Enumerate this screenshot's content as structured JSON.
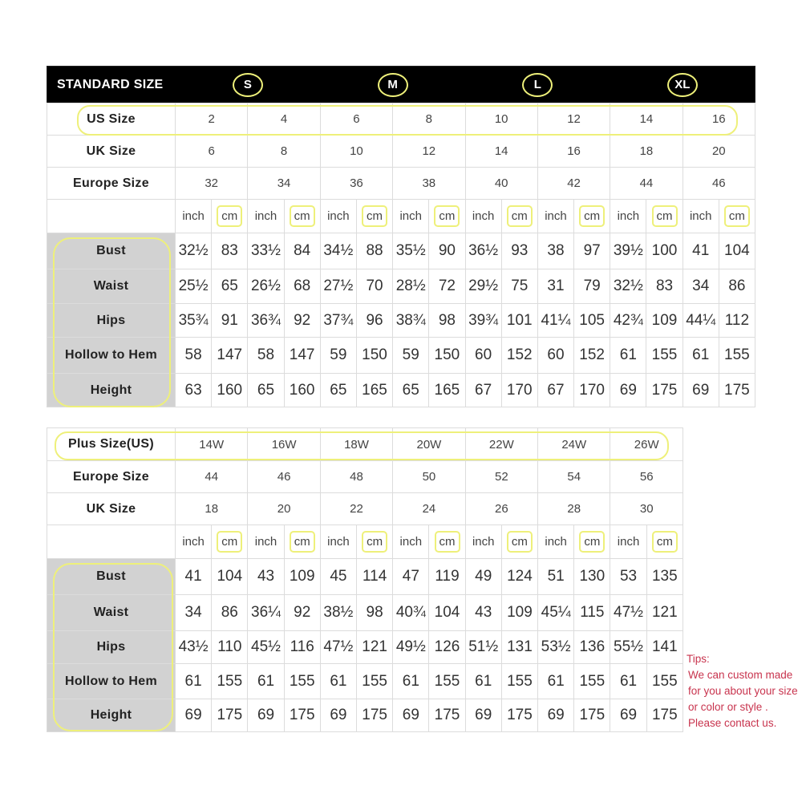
{
  "standard": {
    "title": "STANDARD SIZE",
    "letters": [
      "S",
      "M",
      "L",
      "XL"
    ],
    "size_rows": [
      {
        "label": "US Size",
        "values": [
          "2",
          "4",
          "6",
          "8",
          "10",
          "12",
          "14",
          "16"
        ]
      },
      {
        "label": "UK Size",
        "values": [
          "6",
          "8",
          "10",
          "12",
          "14",
          "16",
          "18",
          "20"
        ]
      },
      {
        "label": "Europe Size",
        "values": [
          "32",
          "34",
          "36",
          "38",
          "40",
          "42",
          "44",
          "46"
        ]
      }
    ],
    "units": [
      "inch",
      "cm"
    ],
    "measure_rows": [
      {
        "label": "Bust",
        "values": [
          "32½",
          "83",
          "33½",
          "84",
          "34½",
          "88",
          "35½",
          "90",
          "36½",
          "93",
          "38",
          "97",
          "39½",
          "100",
          "41",
          "104"
        ]
      },
      {
        "label": "Waist",
        "values": [
          "25½",
          "65",
          "26½",
          "68",
          "27½",
          "70",
          "28½",
          "72",
          "29½",
          "75",
          "31",
          "79",
          "32½",
          "83",
          "34",
          "86"
        ]
      },
      {
        "label": "Hips",
        "values": [
          "35¾",
          "91",
          "36¾",
          "92",
          "37¾",
          "96",
          "38¾",
          "98",
          "39¾",
          "101",
          "41¼",
          "105",
          "42¾",
          "109",
          "44¼",
          "112"
        ]
      },
      {
        "label": "Hollow to Hem",
        "values": [
          "58",
          "147",
          "58",
          "147",
          "59",
          "150",
          "59",
          "150",
          "60",
          "152",
          "60",
          "152",
          "61",
          "155",
          "61",
          "155"
        ]
      },
      {
        "label": "Height",
        "values": [
          "63",
          "160",
          "65",
          "160",
          "65",
          "165",
          "65",
          "165",
          "67",
          "170",
          "67",
          "170",
          "69",
          "175",
          "69",
          "175"
        ]
      }
    ]
  },
  "plus": {
    "size_rows": [
      {
        "label": "Plus Size(US)",
        "values": [
          "14W",
          "16W",
          "18W",
          "20W",
          "22W",
          "24W",
          "26W"
        ]
      },
      {
        "label": "Europe Size",
        "values": [
          "44",
          "46",
          "48",
          "50",
          "52",
          "54",
          "56"
        ]
      },
      {
        "label": "UK Size",
        "values": [
          "18",
          "20",
          "22",
          "24",
          "26",
          "28",
          "30"
        ]
      }
    ],
    "units": [
      "inch",
      "cm"
    ],
    "measure_rows": [
      {
        "label": "Bust",
        "values": [
          "41",
          "104",
          "43",
          "109",
          "45",
          "114",
          "47",
          "119",
          "49",
          "124",
          "51",
          "130",
          "53",
          "135"
        ]
      },
      {
        "label": "Waist",
        "values": [
          "34",
          "86",
          "36¼",
          "92",
          "38½",
          "98",
          "40¾",
          "104",
          "43",
          "109",
          "45¼",
          "115",
          "47½",
          "121"
        ]
      },
      {
        "label": "Hips",
        "values": [
          "43½",
          "110",
          "45½",
          "116",
          "47½",
          "121",
          "49½",
          "126",
          "51½",
          "131",
          "53½",
          "136",
          "55½",
          "141"
        ]
      },
      {
        "label": "Hollow to Hem",
        "values": [
          "61",
          "155",
          "61",
          "155",
          "61",
          "155",
          "61",
          "155",
          "61",
          "155",
          "61",
          "155",
          "61",
          "155"
        ]
      },
      {
        "label": "Height",
        "values": [
          "69",
          "175",
          "69",
          "175",
          "69",
          "175",
          "69",
          "175",
          "69",
          "175",
          "69",
          "175",
          "69",
          "175"
        ]
      }
    ]
  },
  "tips": {
    "title": "Tips:",
    "lines": [
      "We can custom made",
      "for you about your size",
      "or color or style .",
      "Please contact us."
    ]
  },
  "colors": {
    "highlight": "#eef07a",
    "label_bg": "#d2d2d2",
    "header_bg": "#000000",
    "tips": "#c8344e"
  }
}
